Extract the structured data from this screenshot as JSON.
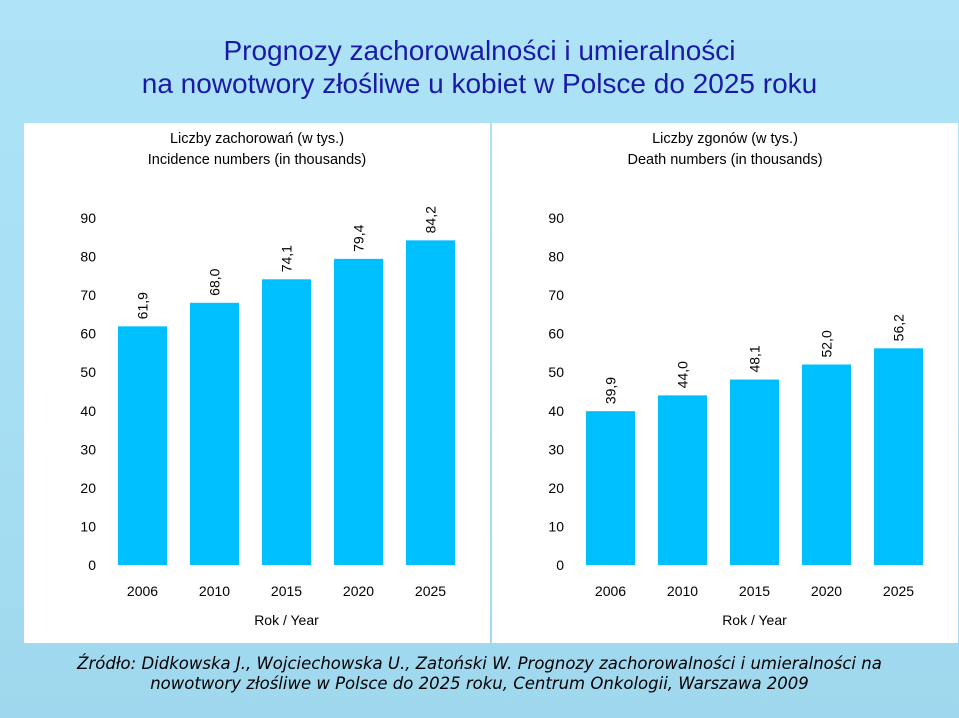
{
  "title": {
    "line1": "Prognozy zachorowalności i umieralności",
    "line2": "na nowotwory złośliwe u kobiet w Polsce do 2025 roku"
  },
  "footer": {
    "line1": "Źródło: Didkowska J., Wojciechowska U., Zatoński W. Prognozy zachorowalności i umieralności na",
    "line2": "nowotwory złośliwe w Polsce do 2025 roku, Centrum Onkologii, Warszawa 2009"
  },
  "colors": {
    "bar": "#00bfff",
    "title": "#1a1aa6"
  },
  "chart_data": [
    {
      "type": "bar",
      "title": "Liczby zachorowań (w tys.)",
      "subtitle": "Incidence numbers (in thousands)",
      "xlabel": "Rok / Year",
      "ylabel": "",
      "categories": [
        "2006",
        "2010",
        "2015",
        "2020",
        "2025"
      ],
      "values": [
        61.9,
        68.0,
        74.1,
        79.4,
        84.2
      ],
      "value_labels": [
        "61,9",
        "68,0",
        "74,1",
        "79,4",
        "84,2"
      ],
      "ylim": [
        0,
        90
      ],
      "yticks": [
        "0",
        "10",
        "20",
        "30",
        "40",
        "50",
        "60",
        "70",
        "80",
        "90"
      ],
      "grid": false,
      "legend": "none"
    },
    {
      "type": "bar",
      "title": "Liczby zgonów (w tys.)",
      "subtitle": "Death numbers (in thousands)",
      "xlabel": "Rok / Year",
      "ylabel": "",
      "categories": [
        "2006",
        "2010",
        "2015",
        "2020",
        "2025"
      ],
      "values": [
        39.9,
        44.0,
        48.1,
        52.0,
        56.2
      ],
      "value_labels": [
        "39,9",
        "44,0",
        "48,1",
        "52,0",
        "56,2"
      ],
      "ylim": [
        0,
        90
      ],
      "yticks": [
        "0",
        "10",
        "20",
        "30",
        "40",
        "50",
        "60",
        "70",
        "80",
        "90"
      ],
      "grid": false,
      "legend": "none"
    }
  ]
}
